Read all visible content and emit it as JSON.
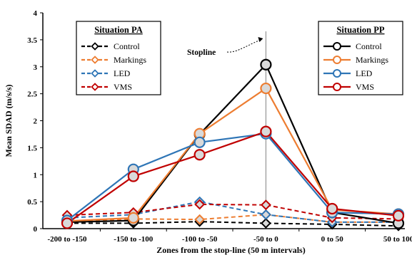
{
  "chart_data": {
    "type": "line",
    "categories": [
      "-200 to -150",
      "-150 to -100",
      "-100 to -50",
      "-50 to 0",
      "0 to 50",
      "50 to 100"
    ],
    "xlabel": "Zones from the stop-line (50 m intervals)",
    "ylabel": "Mean SDAD (m/s/s)",
    "ylim": [
      0,
      4
    ],
    "yticks": [
      "0",
      "0.5",
      "1",
      "1.5",
      "2",
      "2.5",
      "3",
      "3.5",
      "4"
    ],
    "grid": false,
    "annotation": {
      "text": "Stopline",
      "category_index": 3
    },
    "legends": [
      {
        "title": "Situation PA",
        "placement": "top-left",
        "style": "dashed",
        "entries": [
          "Control",
          "Markings",
          "LED",
          "VMS"
        ]
      },
      {
        "title": "Situation PP",
        "placement": "top-right",
        "style": "solid",
        "entries": [
          "Control",
          "Markings",
          "LED",
          "VMS"
        ]
      }
    ],
    "series": [
      {
        "name": "Control",
        "situation": "PP",
        "style": "solid",
        "marker": "circle",
        "color": "#000000",
        "values": [
          0.12,
          0.15,
          1.75,
          3.04,
          0.3,
          0.1
        ]
      },
      {
        "name": "Markings",
        "situation": "PP",
        "style": "solid",
        "marker": "circle",
        "color": "#ed7d31",
        "values": [
          0.14,
          0.2,
          1.76,
          2.6,
          0.35,
          0.27
        ]
      },
      {
        "name": "LED",
        "situation": "PP",
        "style": "solid",
        "marker": "circle",
        "color": "#2e75b6",
        "values": [
          0.15,
          1.1,
          1.6,
          1.76,
          0.3,
          0.27
        ]
      },
      {
        "name": "VMS",
        "situation": "PP",
        "style": "solid",
        "marker": "circle",
        "color": "#c00000",
        "values": [
          0.1,
          0.97,
          1.37,
          1.8,
          0.37,
          0.24
        ]
      },
      {
        "name": "Control",
        "situation": "PA",
        "style": "dashed",
        "marker": "diamond",
        "color": "#000000",
        "values": [
          0.1,
          0.1,
          0.13,
          0.1,
          0.08,
          0.05
        ]
      },
      {
        "name": "Markings",
        "situation": "PA",
        "style": "dashed",
        "marker": "diamond",
        "color": "#ed7d31",
        "values": [
          0.12,
          0.18,
          0.17,
          0.26,
          0.12,
          0.12
        ]
      },
      {
        "name": "LED",
        "situation": "PA",
        "style": "dashed",
        "marker": "diamond",
        "color": "#2e75b6",
        "values": [
          0.2,
          0.26,
          0.5,
          0.26,
          0.12,
          0.12
        ]
      },
      {
        "name": "VMS",
        "situation": "PA",
        "style": "dashed",
        "marker": "diamond",
        "color": "#c00000",
        "values": [
          0.25,
          0.3,
          0.45,
          0.44,
          0.2,
          0.18
        ]
      }
    ]
  }
}
